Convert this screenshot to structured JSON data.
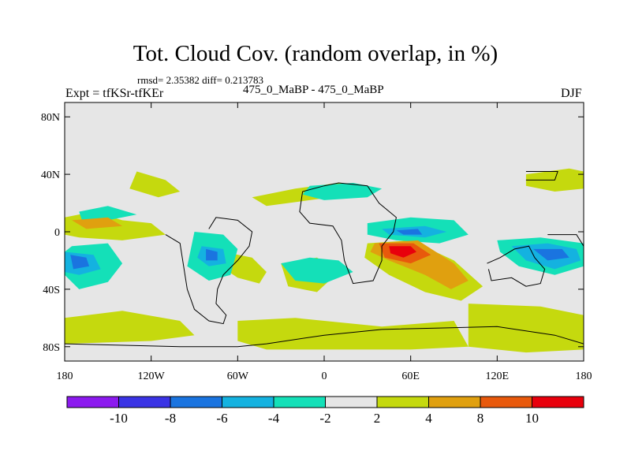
{
  "title": "Tot. Cloud Cov. (random overlap, in %)",
  "stats": "rmsd= 2.35382 diff= 0.213783",
  "left_label": "Expt = tfKSr-tfKEr",
  "center_label": "475_0_MaBP - 475_0_MaBP",
  "right_label": "DJF",
  "colors": {
    "background": "#e6e6e6",
    "outline": "#000000"
  },
  "chart_data": {
    "type": "heatmap",
    "title": "Tot. Cloud Cov. (random overlap, in %)",
    "xlabel": "",
    "ylabel": "",
    "xlim": [
      -180,
      180
    ],
    "ylim": [
      -90,
      90
    ],
    "x_ticks": [
      {
        "value": -180,
        "label": "180"
      },
      {
        "value": -120,
        "label": "120W"
      },
      {
        "value": -60,
        "label": "60W"
      },
      {
        "value": 0,
        "label": "0"
      },
      {
        "value": 60,
        "label": "60E"
      },
      {
        "value": 120,
        "label": "120E"
      },
      {
        "value": 180,
        "label": "180"
      }
    ],
    "y_ticks": [
      {
        "value": 80,
        "label": "80N"
      },
      {
        "value": 40,
        "label": "40N"
      },
      {
        "value": 0,
        "label": "0"
      },
      {
        "value": -40,
        "label": "40S"
      },
      {
        "value": -80,
        "label": "80S"
      }
    ],
    "colorbar": {
      "levels": [
        -10,
        -8,
        -6,
        -4,
        -2,
        2,
        4,
        8,
        10
      ],
      "labels": [
        "-10",
        "-8",
        "-6",
        "-4",
        "-2",
        "2",
        "4",
        "8",
        "10"
      ],
      "colors": [
        "#8c1aef",
        "#3a33e5",
        "#1a74e0",
        "#14b2e0",
        "#14e0b8",
        "#e6e6e6",
        "#c5d90e",
        "#e0a00f",
        "#e8590c",
        "#e8000c"
      ]
    },
    "contour_regions": [
      {
        "level": 4,
        "color": "#c5d90e",
        "points": [
          [
            -180,
            -60
          ],
          [
            -140,
            -55
          ],
          [
            -100,
            -62
          ],
          [
            -90,
            -72
          ],
          [
            -120,
            -76
          ],
          [
            -180,
            -78
          ]
        ]
      },
      {
        "level": 4,
        "color": "#c5d90e",
        "points": [
          [
            -60,
            -62
          ],
          [
            -20,
            -60
          ],
          [
            40,
            -66
          ],
          [
            90,
            -62
          ],
          [
            100,
            -80
          ],
          [
            60,
            -82
          ],
          [
            -40,
            -82
          ],
          [
            -60,
            -76
          ]
        ]
      },
      {
        "level": 4,
        "color": "#c5d90e",
        "points": [
          [
            100,
            -50
          ],
          [
            150,
            -52
          ],
          [
            180,
            -58
          ],
          [
            180,
            -82
          ],
          [
            140,
            -84
          ],
          [
            100,
            -80
          ]
        ]
      },
      {
        "level": 4,
        "color": "#c5d90e",
        "points": [
          [
            30,
            -8
          ],
          [
            60,
            -6
          ],
          [
            90,
            -20
          ],
          [
            110,
            -38
          ],
          [
            95,
            -48
          ],
          [
            70,
            -42
          ],
          [
            45,
            -30
          ],
          [
            28,
            -18
          ]
        ]
      },
      {
        "level": 4,
        "color": "#c5d90e",
        "points": [
          [
            -180,
            10
          ],
          [
            -160,
            14
          ],
          [
            -140,
            8
          ],
          [
            -120,
            6
          ],
          [
            -110,
            -2
          ],
          [
            -140,
            -6
          ],
          [
            -170,
            -4
          ],
          [
            -180,
            -2
          ]
        ]
      },
      {
        "level": 4,
        "color": "#c5d90e",
        "points": [
          [
            -130,
            42
          ],
          [
            -110,
            36
          ],
          [
            -100,
            28
          ],
          [
            -115,
            24
          ],
          [
            -135,
            30
          ]
        ]
      },
      {
        "level": 4,
        "color": "#c5d90e",
        "points": [
          [
            -50,
            24
          ],
          [
            -20,
            30
          ],
          [
            10,
            34
          ],
          [
            30,
            32
          ],
          [
            20,
            26
          ],
          [
            -10,
            22
          ],
          [
            -40,
            18
          ]
        ]
      },
      {
        "level": 4,
        "color": "#c5d90e",
        "points": [
          [
            -70,
            -14
          ],
          [
            -50,
            -18
          ],
          [
            -40,
            -28
          ],
          [
            -45,
            -36
          ],
          [
            -60,
            -32
          ],
          [
            -72,
            -24
          ]
        ]
      },
      {
        "level": 4,
        "color": "#c5d90e",
        "points": [
          [
            -30,
            -22
          ],
          [
            -5,
            -18
          ],
          [
            10,
            -28
          ],
          [
            -5,
            -42
          ],
          [
            -25,
            -38
          ]
        ]
      },
      {
        "level": 4,
        "color": "#c5d90e",
        "points": [
          [
            140,
            40
          ],
          [
            170,
            44
          ],
          [
            180,
            42
          ],
          [
            180,
            30
          ],
          [
            160,
            28
          ],
          [
            140,
            32
          ]
        ]
      },
      {
        "level": -2,
        "color": "#14e0b8",
        "points": [
          [
            -175,
            -10
          ],
          [
            -150,
            -8
          ],
          [
            -140,
            -22
          ],
          [
            -150,
            -35
          ],
          [
            -170,
            -40
          ],
          [
            -180,
            -30
          ],
          [
            -180,
            -14
          ]
        ]
      },
      {
        "level": -2,
        "color": "#14e0b8",
        "points": [
          [
            -90,
            0
          ],
          [
            -70,
            -2
          ],
          [
            -60,
            -12
          ],
          [
            -65,
            -30
          ],
          [
            -80,
            -34
          ],
          [
            -95,
            -24
          ]
        ]
      },
      {
        "level": -2,
        "color": "#14e0b8",
        "points": [
          [
            30,
            6
          ],
          [
            60,
            10
          ],
          [
            90,
            8
          ],
          [
            100,
            -2
          ],
          [
            80,
            -8
          ],
          [
            50,
            -6
          ],
          [
            30,
            -2
          ]
        ]
      },
      {
        "level": -2,
        "color": "#14e0b8",
        "points": [
          [
            120,
            -6
          ],
          [
            150,
            -4
          ],
          [
            180,
            -8
          ],
          [
            180,
            -24
          ],
          [
            160,
            -30
          ],
          [
            135,
            -24
          ],
          [
            122,
            -14
          ]
        ]
      },
      {
        "level": -2,
        "color": "#14e0b8",
        "points": [
          [
            -10,
            32
          ],
          [
            20,
            34
          ],
          [
            40,
            30
          ],
          [
            30,
            24
          ],
          [
            0,
            22
          ],
          [
            -15,
            26
          ]
        ]
      },
      {
        "level": -2,
        "color": "#14e0b8",
        "points": [
          [
            -30,
            -22
          ],
          [
            -10,
            -18
          ],
          [
            10,
            -20
          ],
          [
            20,
            -28
          ],
          [
            0,
            -36
          ],
          [
            -20,
            -34
          ]
        ]
      },
      {
        "level": -2,
        "color": "#14e0b8",
        "points": [
          [
            -170,
            14
          ],
          [
            -150,
            18
          ],
          [
            -130,
            12
          ],
          [
            -150,
            8
          ],
          [
            -168,
            8
          ]
        ]
      },
      {
        "level": -4,
        "color": "#14b2e0",
        "points": [
          [
            -180,
            -14
          ],
          [
            -160,
            -16
          ],
          [
            -155,
            -26
          ],
          [
            -170,
            -30
          ],
          [
            -180,
            -28
          ]
        ]
      },
      {
        "level": -4,
        "color": "#14b2e0",
        "points": [
          [
            -85,
            -10
          ],
          [
            -70,
            -12
          ],
          [
            -68,
            -22
          ],
          [
            -80,
            -24
          ],
          [
            -88,
            -18
          ]
        ]
      },
      {
        "level": -4,
        "color": "#14b2e0",
        "points": [
          [
            130,
            -10
          ],
          [
            155,
            -8
          ],
          [
            175,
            -12
          ],
          [
            178,
            -20
          ],
          [
            160,
            -26
          ],
          [
            140,
            -20
          ]
        ]
      },
      {
        "level": -4,
        "color": "#14b2e0",
        "points": [
          [
            40,
            2
          ],
          [
            70,
            4
          ],
          [
            85,
            0
          ],
          [
            70,
            -4
          ],
          [
            45,
            -2
          ]
        ]
      },
      {
        "level": -6,
        "color": "#1a74e0",
        "points": [
          [
            -176,
            -16
          ],
          [
            -165,
            -18
          ],
          [
            -163,
            -24
          ],
          [
            -174,
            -26
          ]
        ]
      },
      {
        "level": -6,
        "color": "#1a74e0",
        "points": [
          [
            -82,
            -12
          ],
          [
            -74,
            -14
          ],
          [
            -74,
            -20
          ],
          [
            -82,
            -20
          ]
        ]
      },
      {
        "level": -6,
        "color": "#1a74e0",
        "points": [
          [
            145,
            -12
          ],
          [
            165,
            -12
          ],
          [
            170,
            -18
          ],
          [
            155,
            -20
          ]
        ]
      },
      {
        "level": -6,
        "color": "#1a74e0",
        "points": [
          [
            50,
            1
          ],
          [
            65,
            2
          ],
          [
            68,
            -2
          ],
          [
            55,
            -2
          ]
        ]
      },
      {
        "level": 4,
        "color": "#e0a00f",
        "points": [
          [
            35,
            -8
          ],
          [
            65,
            -6
          ],
          [
            90,
            -22
          ],
          [
            100,
            -34
          ],
          [
            88,
            -40
          ],
          [
            70,
            -30
          ],
          [
            45,
            -20
          ],
          [
            32,
            -14
          ]
        ]
      },
      {
        "level": 4,
        "color": "#e0a00f",
        "points": [
          [
            -175,
            8
          ],
          [
            -150,
            10
          ],
          [
            -140,
            4
          ],
          [
            -165,
            2
          ]
        ]
      },
      {
        "level": 8,
        "color": "#e8590c",
        "points": [
          [
            38,
            -8
          ],
          [
            62,
            -8
          ],
          [
            74,
            -16
          ],
          [
            60,
            -22
          ],
          [
            42,
            -18
          ]
        ]
      },
      {
        "level": 10,
        "color": "#e8000c",
        "points": [
          [
            45,
            -10
          ],
          [
            60,
            -10
          ],
          [
            64,
            -14
          ],
          [
            55,
            -18
          ],
          [
            46,
            -15
          ]
        ]
      }
    ],
    "coastlines": [
      [
        [
          -110,
          -2
        ],
        [
          -100,
          -8
        ],
        [
          -95,
          -40
        ],
        [
          -90,
          -54
        ],
        [
          -80,
          -62
        ],
        [
          -70,
          -64
        ],
        [
          -68,
          -58
        ],
        [
          -75,
          -50
        ],
        [
          -74,
          -40
        ],
        [
          -70,
          -30
        ],
        [
          -60,
          -20
        ],
        [
          -52,
          -10
        ],
        [
          -50,
          0
        ],
        [
          -60,
          8
        ],
        [
          -75,
          10
        ],
        [
          -80,
          2
        ]
      ],
      [
        [
          -15,
          28
        ],
        [
          0,
          32
        ],
        [
          10,
          34
        ],
        [
          30,
          32
        ],
        [
          38,
          20
        ],
        [
          50,
          10
        ],
        [
          48,
          0
        ],
        [
          40,
          -10
        ],
        [
          40,
          -20
        ],
        [
          34,
          -34
        ],
        [
          20,
          -36
        ],
        [
          14,
          -20
        ],
        [
          12,
          -6
        ],
        [
          6,
          4
        ],
        [
          -10,
          6
        ],
        [
          -17,
          14
        ],
        [
          -15,
          28
        ]
      ],
      [
        [
          113,
          -22
        ],
        [
          122,
          -18
        ],
        [
          132,
          -12
        ],
        [
          142,
          -10
        ],
        [
          146,
          -18
        ],
        [
          153,
          -26
        ],
        [
          150,
          -36
        ],
        [
          140,
          -38
        ],
        [
          130,
          -32
        ],
        [
          116,
          -34
        ],
        [
          114,
          -26
        ]
      ],
      [
        [
          -180,
          -78
        ],
        [
          -100,
          -80
        ],
        [
          -60,
          -80
        ],
        [
          -40,
          -78
        ],
        [
          0,
          -72
        ],
        [
          40,
          -68
        ],
        [
          80,
          -67
        ],
        [
          120,
          -66
        ],
        [
          160,
          -72
        ],
        [
          180,
          -78
        ]
      ],
      [
        [
          155,
          -2
        ],
        [
          175,
          -2
        ],
        [
          180,
          -10
        ]
      ],
      [
        [
          140,
          36
        ],
        [
          160,
          36
        ],
        [
          162,
          42
        ],
        [
          140,
          42
        ]
      ]
    ]
  }
}
